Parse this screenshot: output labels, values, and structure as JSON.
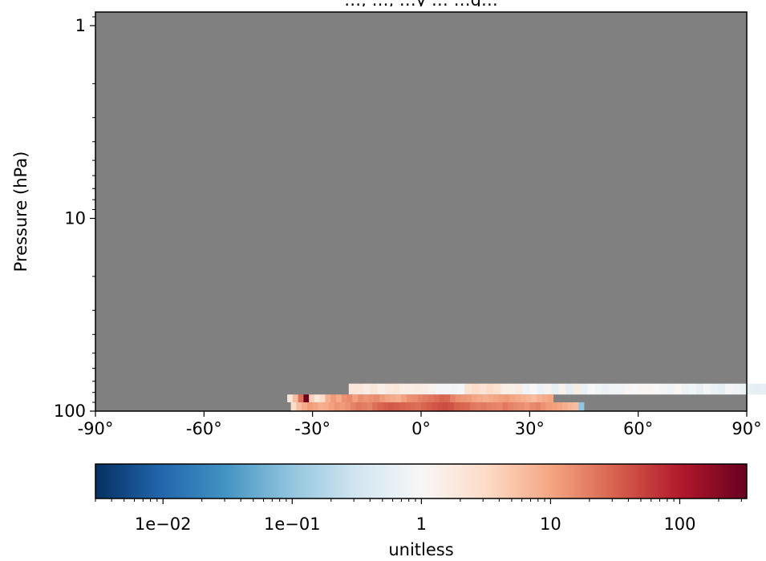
{
  "chart_data": {
    "type": "heatmap",
    "title": "…, …, …y … …g…",
    "xlabel": "",
    "ylabel": "Pressure (hPa)",
    "x_range": [
      -90,
      90
    ],
    "y_range": [
      100,
      0.85
    ],
    "y_scale": "log",
    "y_inverted": true,
    "x_ticks": [
      {
        "value": -90,
        "label": "-90°"
      },
      {
        "value": -60,
        "label": "-60°"
      },
      {
        "value": -30,
        "label": "-30°"
      },
      {
        "value": 0,
        "label": "0°"
      },
      {
        "value": 30,
        "label": "30°"
      },
      {
        "value": 60,
        "label": "60°"
      },
      {
        "value": 90,
        "label": "90°"
      }
    ],
    "y_ticks": [
      {
        "value": 1,
        "label": "1"
      },
      {
        "value": 10,
        "label": "10"
      },
      {
        "value": 100,
        "label": "100"
      }
    ],
    "missing_color": "#808080",
    "colormap": "RdBu_r",
    "colorbar": {
      "scale": "log",
      "range": [
        0.003,
        330
      ],
      "label": "unitless",
      "ticks": [
        {
          "value": 0.01,
          "label": "1e−02"
        },
        {
          "value": 0.1,
          "label": "1e−01"
        },
        {
          "value": 1,
          "label": "1"
        },
        {
          "value": 10,
          "label": "10"
        },
        {
          "value": 100,
          "label": "100"
        }
      ]
    },
    "rows": [
      {
        "p_top": 72,
        "p_bottom": 82,
        "lat_start": -20,
        "lat_step": 2,
        "values": [
          2,
          2,
          1.5,
          2,
          1.4,
          1.8,
          2,
          1.5,
          1.5,
          1.6,
          1.5,
          1.3,
          0.9,
          0.9,
          0.8,
          0.9,
          2.4,
          3,
          2.2,
          3,
          2.3,
          1.5,
          1.4,
          1.6,
          0.8,
          1,
          0.7,
          1.2,
          0.6,
          1.3,
          0.55,
          1.6,
          0.7,
          1,
          0.8,
          0.7,
          0.85,
          0.8,
          1.1,
          1,
          1.1,
          1.1,
          1,
          0.9,
          0.8,
          1.1,
          0.75,
          0.85,
          0.65,
          0.9,
          0.7,
          0.6,
          0.9,
          0.8,
          0.7,
          0.6,
          0.55,
          0.6,
          0.45
        ]
      },
      {
        "p_top": 82,
        "p_bottom": 90,
        "lat_start": -37,
        "lat_step": 1.5,
        "values": [
          2,
          6,
          25,
          300,
          4,
          2,
          3,
          8,
          12,
          9,
          14,
          16,
          11,
          15,
          13,
          14,
          16,
          12,
          10,
          9,
          8,
          11,
          14,
          15,
          18,
          20,
          22,
          25,
          30,
          28,
          18,
          14,
          13,
          12,
          10,
          9,
          8,
          9,
          10,
          11,
          12,
          10,
          9,
          8,
          7,
          6,
          8,
          9,
          10
        ]
      },
      {
        "p_top": 90,
        "p_bottom": 100,
        "lat_start": -36,
        "lat_step": 1.5,
        "values": [
          3,
          6,
          9,
          12,
          10,
          8,
          9,
          11,
          13,
          12,
          14,
          18,
          22,
          20,
          18,
          25,
          30,
          34,
          36,
          33,
          31,
          29,
          27,
          26,
          30,
          34,
          38,
          42,
          45,
          40,
          32,
          30,
          28,
          22,
          20,
          21,
          19,
          18,
          17,
          22,
          18,
          16,
          15,
          13,
          16,
          18,
          14,
          12,
          11,
          10,
          8,
          7,
          6,
          0.1
        ]
      }
    ]
  }
}
